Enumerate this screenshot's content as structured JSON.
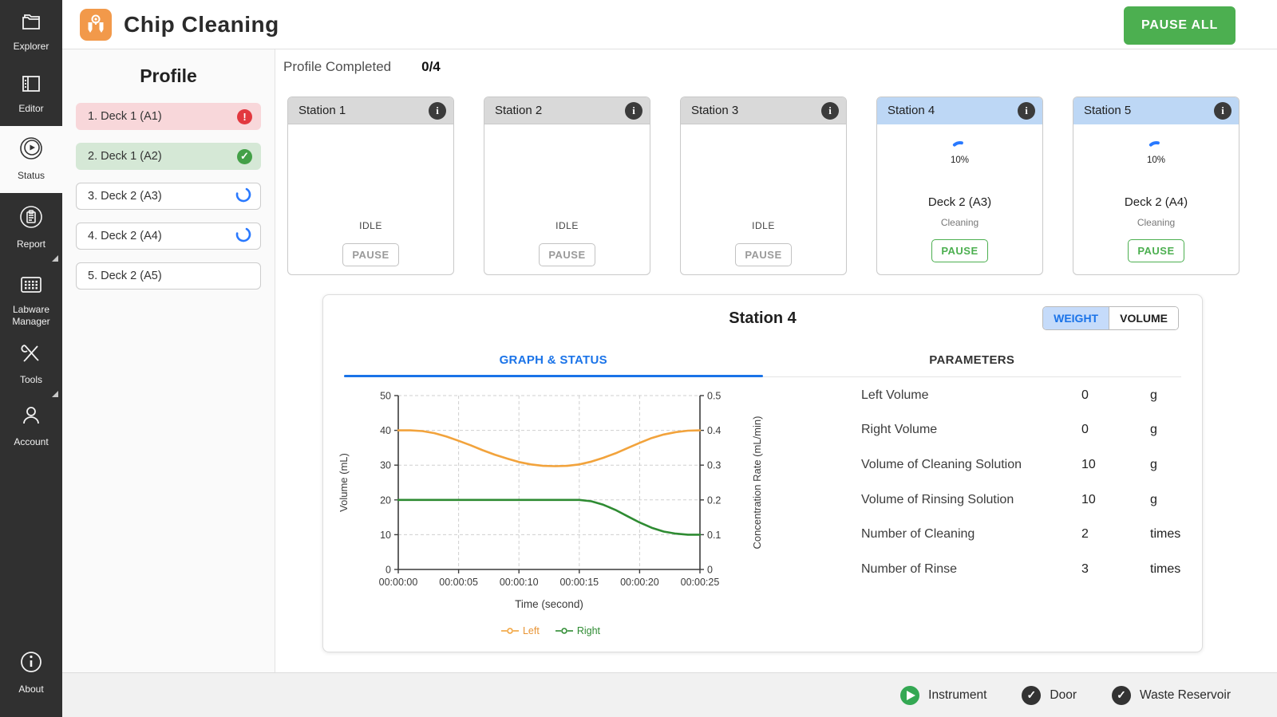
{
  "app": {
    "title": "Chip Cleaning",
    "pause_all_label": "PAUSE ALL"
  },
  "sidebar": {
    "items": [
      {
        "label": "Explorer"
      },
      {
        "label": "Editor"
      },
      {
        "label": "Status",
        "active": true
      },
      {
        "label": "Report",
        "has_submenu": true
      },
      {
        "label": "Labware Manager"
      },
      {
        "label": "Tools",
        "has_submenu": true
      },
      {
        "label": "Account"
      },
      {
        "label": "About"
      }
    ]
  },
  "profile": {
    "title": "Profile",
    "items": [
      {
        "label": "1. Deck 1 (A1)",
        "status": "error"
      },
      {
        "label": "2. Deck 1 (A2)",
        "status": "completed"
      },
      {
        "label": "3. Deck 2 (A3)",
        "status": "running"
      },
      {
        "label": "4. Deck 2 (A4)",
        "status": "running"
      },
      {
        "label": "5. Deck 2 (A5)",
        "status": "pending"
      }
    ]
  },
  "progress": {
    "label": "Profile Completed",
    "value": "0/4"
  },
  "stations": [
    {
      "name": "Station 1",
      "state": "idle",
      "status_text": "IDLE",
      "pause_label": "PAUSE"
    },
    {
      "name": "Station 2",
      "state": "idle",
      "status_text": "IDLE",
      "pause_label": "PAUSE"
    },
    {
      "name": "Station 3",
      "state": "idle",
      "status_text": "IDLE",
      "pause_label": "PAUSE"
    },
    {
      "name": "Station 4",
      "state": "running",
      "progress": "10%",
      "deck": "Deck 2 (A3)",
      "activity": "Cleaning",
      "pause_label": "PAUSE"
    },
    {
      "name": "Station 5",
      "state": "running",
      "progress": "10%",
      "deck": "Deck 2 (A4)",
      "activity": "Cleaning",
      "pause_label": "PAUSE"
    }
  ],
  "detail": {
    "title": "Station 4",
    "toggle": {
      "weight": "WEIGHT",
      "volume": "VOLUME",
      "selected": "WEIGHT"
    },
    "tabs": {
      "graph": "GRAPH & STATUS",
      "parameters": "PARAMETERS",
      "active": "GRAPH & STATUS"
    },
    "parameters": [
      {
        "label": "Left Volume",
        "value": "0",
        "unit": "g"
      },
      {
        "label": "Right Volume",
        "value": "0",
        "unit": "g"
      },
      {
        "label": "Volume of Cleaning Solution",
        "value": "10",
        "unit": "g"
      },
      {
        "label": "Volume of Rinsing Solution",
        "value": "10",
        "unit": "g"
      },
      {
        "label": "Number of Cleaning",
        "value": "2",
        "unit": "times"
      },
      {
        "label": "Number of Rinse",
        "value": "3",
        "unit": "times"
      }
    ]
  },
  "chart_data": {
    "type": "line",
    "title": "",
    "xlabel": "Time (second)",
    "x_ticks": [
      {
        "t": 0,
        "label": "00:00:00"
      },
      {
        "t": 5,
        "label": "00:00:05"
      },
      {
        "t": 10,
        "label": "00:00:10"
      },
      {
        "t": 15,
        "label": "00:00:15"
      },
      {
        "t": 20,
        "label": "00:00:20"
      },
      {
        "t": 25,
        "label": "00:00:25"
      }
    ],
    "x_range": [
      0,
      25
    ],
    "left_axis": {
      "label": "Volume (mL)",
      "min": 0,
      "max": 50,
      "tick_step": 10
    },
    "right_axis": {
      "label": "Concentration Rate (mL/min)",
      "min": 0,
      "max": 0.5,
      "tick_step": 0.1
    },
    "grid": "dashed",
    "legend_position": "bottom",
    "legend": [
      {
        "name": "Left",
        "color": "#F2A33C"
      },
      {
        "name": "Right",
        "color": "#2E8B32"
      }
    ],
    "series": [
      {
        "name": "Left",
        "axis": "left",
        "color": "#F2A33C",
        "x": [
          0,
          1,
          2,
          3,
          4,
          5,
          6,
          7,
          8,
          9,
          10,
          11,
          12,
          13,
          14,
          15,
          16,
          17,
          18,
          19,
          20,
          21,
          22,
          23,
          24,
          25
        ],
        "values": [
          40,
          40,
          39.8,
          39.2,
          38.2,
          37,
          35.7,
          34.3,
          33,
          31.9,
          30.9,
          30.2,
          29.8,
          29.7,
          29.8,
          30.2,
          31,
          32.1,
          33.4,
          34.9,
          36.4,
          37.8,
          38.8,
          39.5,
          39.9,
          40
        ]
      },
      {
        "name": "Right",
        "axis": "left",
        "color": "#2E8B32",
        "x": [
          0,
          1,
          2,
          3,
          4,
          5,
          6,
          7,
          8,
          9,
          10,
          11,
          12,
          13,
          14,
          15,
          16,
          17,
          18,
          19,
          20,
          21,
          22,
          23,
          24,
          25
        ],
        "values": [
          20,
          20,
          20,
          20,
          20,
          20,
          20,
          20,
          20,
          20,
          20,
          20,
          20,
          20,
          20,
          20,
          19.6,
          18.6,
          17.1,
          15.3,
          13.5,
          12,
          10.9,
          10.3,
          10,
          10
        ]
      }
    ]
  },
  "footer": {
    "items": [
      {
        "label": "Instrument",
        "icon": "play",
        "color": "#34a853"
      },
      {
        "label": "Door",
        "icon": "check"
      },
      {
        "label": "Waste Reservoir",
        "icon": "check"
      }
    ]
  }
}
